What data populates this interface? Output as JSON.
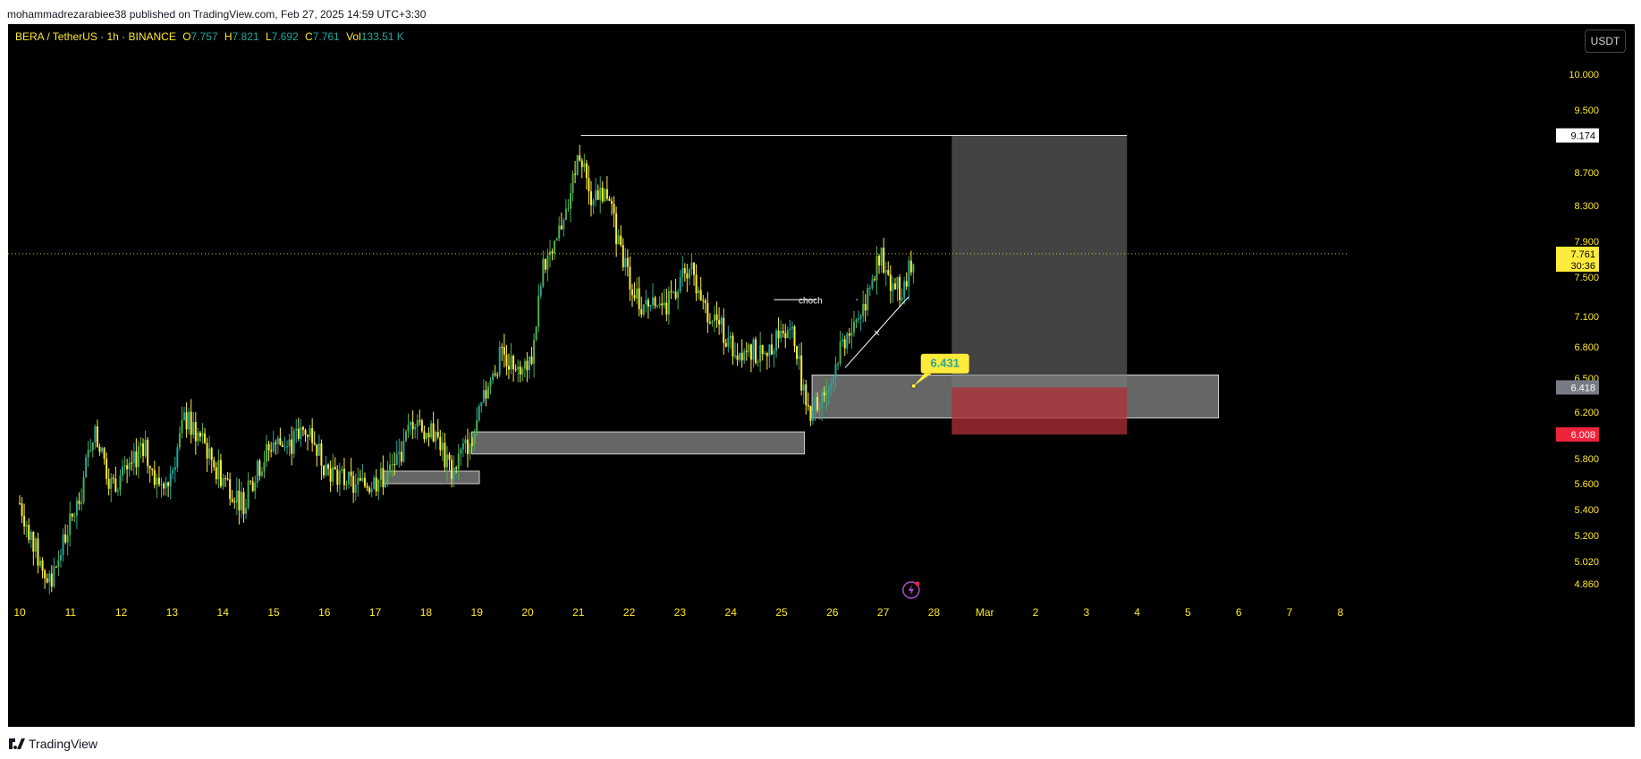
{
  "publisher_line": "mohammadrezarabiee38 published on TradingView.com, Feb 27, 2025 14:59 UTC+3:30",
  "brand": "TradingView",
  "legend": {
    "symbol": "BERA / TetherUS · 1h · BINANCE",
    "o_label": "O",
    "o": "7.757",
    "h_label": "H",
    "h": "7.821",
    "l_label": "L",
    "l": "7.692",
    "c_label": "C",
    "c": "7.761",
    "vol_label": "Vol",
    "vol": "133.51 K"
  },
  "currency": "USDT",
  "colors": {
    "background": "#000000",
    "candle_up": "#26a69a",
    "candle_up_alt": "#4caf50",
    "candle_down": "#ffeb3b",
    "zone": "#ffffff",
    "target_zone": "#7a7a7a",
    "stop_zone": "#b2323a",
    "last_price_tag": "#ffeb3b",
    "stop_tag": "#ef233c"
  },
  "chart_data": {
    "type": "candlestick",
    "symbol": "BERA / TetherUS",
    "interval": "1h",
    "exchange": "BINANCE",
    "y_ticks": [
      "10.000",
      "9.500",
      "8.700",
      "8.300",
      "7.900",
      "7.500",
      "7.100",
      "6.800",
      "6.500",
      "6.200",
      "5.800",
      "5.600",
      "5.400",
      "5.200",
      "5.020",
      "4.860"
    ],
    "x_ticks": [
      "10",
      "11",
      "12",
      "13",
      "14",
      "15",
      "16",
      "17",
      "18",
      "19",
      "20",
      "21",
      "22",
      "23",
      "24",
      "25",
      "26",
      "27",
      "28",
      "Mar",
      "2",
      "3",
      "4",
      "5",
      "6",
      "7",
      "8"
    ],
    "price_series": [
      {
        "day": 10.0,
        "price": 5.45
      },
      {
        "day": 10.4,
        "price": 5.0
      },
      {
        "day": 10.6,
        "price": 4.85
      },
      {
        "day": 10.9,
        "price": 5.2
      },
      {
        "day": 11.2,
        "price": 5.5
      },
      {
        "day": 11.45,
        "price": 6.05
      },
      {
        "day": 11.8,
        "price": 5.6
      },
      {
        "day": 12.2,
        "price": 5.7
      },
      {
        "day": 12.4,
        "price": 5.95
      },
      {
        "day": 12.7,
        "price": 5.6
      },
      {
        "day": 13.0,
        "price": 5.7
      },
      {
        "day": 13.25,
        "price": 6.15
      },
      {
        "day": 13.6,
        "price": 5.95
      },
      {
        "day": 13.9,
        "price": 5.7
      },
      {
        "day": 14.2,
        "price": 5.55
      },
      {
        "day": 14.4,
        "price": 5.45
      },
      {
        "day": 14.8,
        "price": 5.8
      },
      {
        "day": 15.0,
        "price": 5.95
      },
      {
        "day": 15.3,
        "price": 5.9
      },
      {
        "day": 15.5,
        "price": 6.0
      },
      {
        "day": 15.7,
        "price": 6.05
      },
      {
        "day": 16.0,
        "price": 5.75
      },
      {
        "day": 16.3,
        "price": 5.65
      },
      {
        "day": 16.6,
        "price": 5.58
      },
      {
        "day": 16.9,
        "price": 5.6
      },
      {
        "day": 17.2,
        "price": 5.65
      },
      {
        "day": 17.5,
        "price": 5.85
      },
      {
        "day": 17.8,
        "price": 6.2
      },
      {
        "day": 18.0,
        "price": 6.0
      },
      {
        "day": 18.2,
        "price": 6.05
      },
      {
        "day": 18.45,
        "price": 5.7
      },
      {
        "day": 18.7,
        "price": 5.85
      },
      {
        "day": 18.95,
        "price": 6.0
      },
      {
        "day": 19.2,
        "price": 6.4
      },
      {
        "day": 19.5,
        "price": 6.75
      },
      {
        "day": 19.7,
        "price": 6.65
      },
      {
        "day": 19.9,
        "price": 6.65
      },
      {
        "day": 20.1,
        "price": 6.7
      },
      {
        "day": 20.3,
        "price": 7.6
      },
      {
        "day": 20.5,
        "price": 7.7
      },
      {
        "day": 20.7,
        "price": 8.2
      },
      {
        "day": 20.9,
        "price": 8.6
      },
      {
        "day": 21.05,
        "price": 9.0
      },
      {
        "day": 21.2,
        "price": 8.4
      },
      {
        "day": 21.4,
        "price": 8.5
      },
      {
        "day": 21.6,
        "price": 8.45
      },
      {
        "day": 21.8,
        "price": 7.8
      },
      {
        "day": 22.0,
        "price": 7.5
      },
      {
        "day": 22.2,
        "price": 7.2
      },
      {
        "day": 22.5,
        "price": 7.3
      },
      {
        "day": 22.7,
        "price": 7.15
      },
      {
        "day": 23.0,
        "price": 7.5
      },
      {
        "day": 23.2,
        "price": 7.6
      },
      {
        "day": 23.4,
        "price": 7.2
      },
      {
        "day": 23.6,
        "price": 7.15
      },
      {
        "day": 23.9,
        "price": 6.9
      },
      {
        "day": 24.1,
        "price": 6.75
      },
      {
        "day": 24.3,
        "price": 6.8
      },
      {
        "day": 24.5,
        "price": 6.75
      },
      {
        "day": 24.7,
        "price": 6.65
      },
      {
        "day": 24.9,
        "price": 6.95
      },
      {
        "day": 25.1,
        "price": 7.0
      },
      {
        "day": 25.3,
        "price": 6.8
      },
      {
        "day": 25.45,
        "price": 6.3
      },
      {
        "day": 25.6,
        "price": 6.2
      },
      {
        "day": 25.8,
        "price": 6.35
      },
      {
        "day": 26.0,
        "price": 6.5
      },
      {
        "day": 26.15,
        "price": 6.8
      },
      {
        "day": 26.4,
        "price": 7.0
      },
      {
        "day": 26.55,
        "price": 7.15
      },
      {
        "day": 26.7,
        "price": 7.3
      },
      {
        "day": 26.85,
        "price": 7.55
      },
      {
        "day": 26.95,
        "price": 7.85
      },
      {
        "day": 27.05,
        "price": 7.55
      },
      {
        "day": 27.2,
        "price": 7.4
      },
      {
        "day": 27.35,
        "price": 7.35
      },
      {
        "day": 27.5,
        "price": 7.6
      },
      {
        "day": 27.6,
        "price": 7.761
      }
    ],
    "last_price": {
      "value": "7.761",
      "countdown": "30:36"
    },
    "zones": [
      {
        "name": "demand-zone-1",
        "day_from": 17.15,
        "day_to": 19.05,
        "price_hi": 5.7,
        "price_lo": 5.6
      },
      {
        "name": "demand-zone-2",
        "day_from": 18.9,
        "day_to": 25.45,
        "price_hi": 6.03,
        "price_lo": 5.84
      },
      {
        "name": "demand-zone-3",
        "day_from": 25.6,
        "day_to": 33.6,
        "price_hi": 6.53,
        "price_lo": 6.15
      }
    ],
    "position": {
      "day_from": 28.35,
      "day_to": 31.8,
      "target": 9.174,
      "entry": 6.418,
      "stop": 6.008,
      "target_label": "9.174",
      "entry_label": "6.418",
      "stop_label": "6.008"
    },
    "high_line": {
      "day_from": 21.05,
      "day_to": 31.8,
      "price": 9.174
    },
    "annotation": {
      "label": "6.431",
      "day": 27.6,
      "price": 6.431
    },
    "choch": {
      "label": "choch",
      "day_from": 24.85,
      "day_to": 26.5,
      "price": 7.27
    },
    "trendline": {
      "day_from": 26.25,
      "price_from": 6.6,
      "day_to": 27.5,
      "price_to": 7.3,
      "marker": "×"
    }
  }
}
